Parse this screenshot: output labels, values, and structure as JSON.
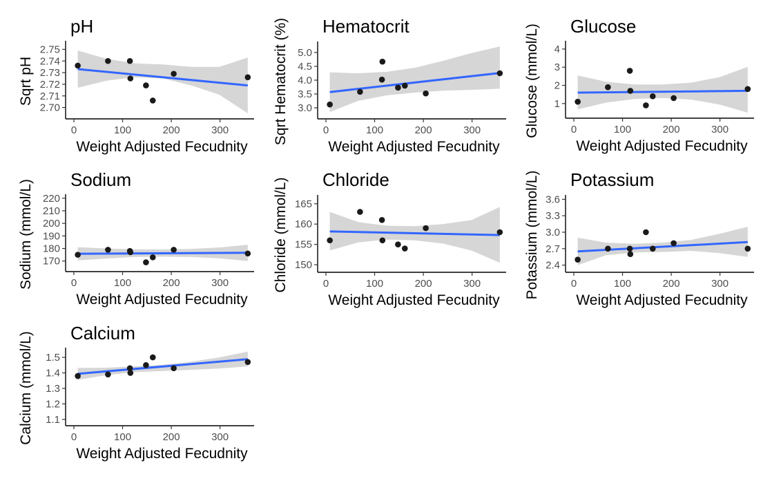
{
  "chart_data": [
    {
      "type": "scatter",
      "title": "pH",
      "xlabel": "Weight Adjusted Fecudnity",
      "ylabel": "Sqrt pH",
      "xlim": [
        0,
        370
      ],
      "ylim": [
        2.695,
        2.755
      ],
      "xticks": [
        0,
        100,
        200,
        300
      ],
      "yticks": [
        2.7,
        2.71,
        2.72,
        2.73,
        2.74,
        2.75
      ],
      "ytick_labels": [
        "2.70",
        "2.71",
        "2.72",
        "2.73",
        "2.74",
        "2.75"
      ],
      "x": [
        8,
        70,
        115,
        116,
        148,
        162,
        205,
        357
      ],
      "y": [
        2.736,
        2.74,
        2.74,
        2.725,
        2.719,
        2.706,
        2.729,
        2.726
      ],
      "fit": {
        "x": [
          8,
          357
        ],
        "y": [
          2.733,
          2.719
        ]
      },
      "ci_lower": [
        2.717,
        2.723,
        2.726,
        2.725,
        2.719,
        2.711,
        2.695
      ],
      "ci_upper": [
        2.749,
        2.742,
        2.738,
        2.737,
        2.735,
        2.735,
        2.743
      ]
    },
    {
      "type": "scatter",
      "title": "Hematocrit",
      "xlabel": "Weight Adjusted Fecudnity",
      "ylabel": "Sqrt Hematocrit (%)",
      "xlim": [
        0,
        370
      ],
      "ylim": [
        2.8,
        5.3
      ],
      "xticks": [
        0,
        100,
        200,
        300
      ],
      "yticks": [
        3.0,
        3.5,
        4.0,
        4.5,
        5.0
      ],
      "ytick_labels": [
        "3.0",
        "3.5",
        "4.0",
        "4.5",
        "5.0"
      ],
      "x": [
        8,
        70,
        115,
        116,
        148,
        162,
        205,
        357
      ],
      "y": [
        3.12,
        3.58,
        4.02,
        4.67,
        3.73,
        3.8,
        3.52,
        4.25
      ],
      "fit": {
        "x": [
          8,
          357
        ],
        "y": [
          3.57,
          4.26
        ]
      },
      "ci_lower": [
        2.85,
        3.25,
        3.45,
        3.55,
        3.62,
        3.65,
        3.69
      ],
      "ci_upper": [
        4.28,
        4.25,
        4.3,
        4.45,
        4.7,
        4.98,
        5.22
      ]
    },
    {
      "type": "scatter",
      "title": "Glucose",
      "xlabel": "Weight Adjusted Fecudnity",
      "ylabel": "Glucose (mmol/L)",
      "xlim": [
        0,
        370
      ],
      "ylim": [
        0.5,
        4.3
      ],
      "xticks": [
        0,
        100,
        200,
        300
      ],
      "yticks": [
        1,
        2,
        3,
        4
      ],
      "ytick_labels": [
        "1",
        "2",
        "3",
        "4"
      ],
      "x": [
        8,
        70,
        115,
        116,
        148,
        162,
        205,
        357
      ],
      "y": [
        1.1,
        1.9,
        2.8,
        1.7,
        0.9,
        1.4,
        1.3,
        1.8
      ],
      "fit": {
        "x": [
          8,
          357
        ],
        "y": [
          1.6,
          1.7
        ]
      },
      "ci_lower": [
        0.68,
        1.05,
        1.25,
        1.3,
        1.22,
        0.95,
        0.5
      ],
      "ci_upper": [
        2.55,
        2.2,
        2.05,
        2.05,
        2.15,
        2.45,
        3.02
      ]
    },
    {
      "type": "scatter",
      "title": "Sodium",
      "xlabel": "Weight Adjusted Fecudnity",
      "ylabel": "Sodium (mmol/L)",
      "xlim": [
        0,
        370
      ],
      "ylim": [
        166,
        221
      ],
      "xticks": [
        0,
        100,
        200,
        300
      ],
      "yticks": [
        170,
        180,
        190,
        200,
        210,
        220
      ],
      "ytick_labels": [
        "170",
        "180",
        "190",
        "200",
        "210",
        "220"
      ],
      "x": [
        8,
        70,
        115,
        116,
        148,
        162,
        205,
        357
      ],
      "y": [
        175,
        179,
        178,
        177,
        169,
        173,
        179,
        176
      ],
      "fit": {
        "x": [
          8,
          357
        ],
        "y": [
          175.8,
          176.6
        ]
      },
      "ci_lower": [
        170.5,
        172.0,
        173.2,
        173.5,
        173.2,
        172.2,
        170.0
      ],
      "ci_upper": [
        181.0,
        180.0,
        179.3,
        179.2,
        179.7,
        180.8,
        183.0
      ]
    },
    {
      "type": "scatter",
      "title": "Chloride",
      "xlabel": "Weight Adjusted Fecudnity",
      "ylabel": "Chloride (mmol/L)",
      "xlim": [
        0,
        370
      ],
      "ylim": [
        149.5,
        166.5
      ],
      "xticks": [
        0,
        100,
        200,
        300
      ],
      "yticks": [
        150,
        155,
        160,
        165
      ],
      "ytick_labels": [
        "150",
        "155",
        "160",
        "165"
      ],
      "x": [
        8,
        70,
        115,
        116,
        148,
        162,
        205,
        357
      ],
      "y": [
        156,
        163,
        161,
        156,
        155,
        154,
        159,
        158
      ],
      "fit": {
        "x": [
          8,
          357
        ],
        "y": [
          158.2,
          157.3
        ]
      },
      "ci_lower": [
        153.5,
        155.5,
        156.2,
        156.0,
        155.2,
        153.5,
        150.5
      ],
      "ci_upper": [
        163.0,
        160.5,
        159.6,
        159.5,
        160.0,
        161.0,
        164.2
      ]
    },
    {
      "type": "scatter",
      "title": "Potassium",
      "xlabel": "Weight Adjusted Fecudnity",
      "ylabel": "Potassium (mmol/L)",
      "xlim": [
        0,
        370
      ],
      "ylim": [
        2.37,
        3.63
      ],
      "xticks": [
        0,
        100,
        200,
        300
      ],
      "yticks": [
        2.4,
        2.7,
        3.0,
        3.3,
        3.6
      ],
      "ytick_labels": [
        "2.4",
        "2.7",
        "3.0",
        "3.3",
        "3.6"
      ],
      "x": [
        8,
        70,
        115,
        116,
        148,
        162,
        205,
        357
      ],
      "y": [
        2.5,
        2.7,
        2.7,
        2.6,
        3.0,
        2.7,
        2.8,
        2.7
      ],
      "fit": {
        "x": [
          8,
          357
        ],
        "y": [
          2.65,
          2.82
        ]
      },
      "ci_lower": [
        2.4,
        2.58,
        2.63,
        2.64,
        2.66,
        2.62,
        2.55
      ],
      "ci_upper": [
        2.9,
        2.81,
        2.79,
        2.81,
        2.86,
        2.97,
        3.1
      ]
    },
    {
      "type": "scatter",
      "title": "Calcium",
      "xlabel": "Weight Adjusted Fecudnity",
      "ylabel": "Calcium (mmol/L)",
      "xlim": [
        0,
        370
      ],
      "ylim": [
        1.095,
        1.545
      ],
      "xticks": [
        0,
        100,
        200,
        300
      ],
      "yticks": [
        1.1,
        1.2,
        1.3,
        1.4,
        1.5
      ],
      "ytick_labels": [
        "1.1",
        "1.2",
        "1.3",
        "1.4",
        "1.5"
      ],
      "x": [
        8,
        70,
        115,
        116,
        148,
        162,
        205,
        357
      ],
      "y": [
        1.38,
        1.39,
        1.43,
        1.4,
        1.45,
        1.5,
        1.43,
        1.47
      ],
      "fit": {
        "x": [
          8,
          357
        ],
        "y": [
          1.394,
          1.488
        ]
      },
      "ci_lower": [
        1.355,
        1.385,
        1.405,
        1.412,
        1.42,
        1.428,
        1.442
      ],
      "ci_upper": [
        1.432,
        1.433,
        1.442,
        1.452,
        1.472,
        1.5,
        1.537
      ]
    }
  ]
}
